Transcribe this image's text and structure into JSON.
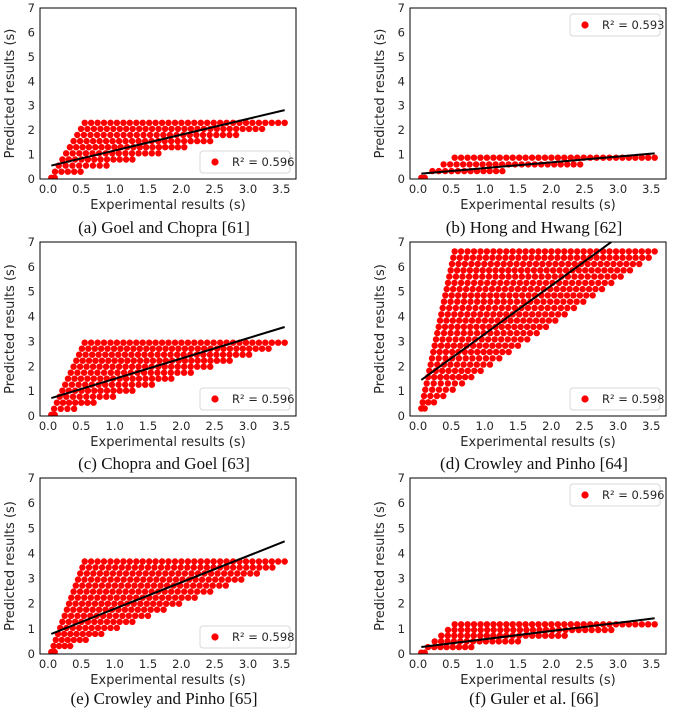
{
  "figure": {
    "marker_color": "#ff0000",
    "line_color": "#000000",
    "x_tick_labels": [
      "0.0",
      "0.5",
      "1.0",
      "1.5",
      "2.0",
      "2.5",
      "3.0",
      "3.5"
    ],
    "y_tick_labels": [
      "0",
      "1",
      "2",
      "3",
      "4",
      "5",
      "6",
      "7"
    ]
  },
  "chart_data": [
    {
      "type": "scatter",
      "caption": "(a) Goel and Chopra [61]",
      "xlabel": "Experimental results (s)",
      "ylabel": "Predicted results (s)",
      "xlim": [
        -0.12,
        3.72
      ],
      "ylim": [
        0,
        7
      ],
      "xticks": [
        0,
        0.5,
        1,
        1.5,
        2,
        2.5,
        3,
        3.5
      ],
      "yticks": [
        0,
        1,
        2,
        3,
        4,
        5,
        6,
        7
      ],
      "x_min": 0.05,
      "x_max": 3.55,
      "knee_x": 0.55,
      "y_min": 0.05,
      "y_max": 2.3,
      "fit_line": {
        "x": [
          0.05,
          3.55
        ],
        "y": [
          0.55,
          2.82
        ]
      },
      "legend": {
        "label": "R² = 0.596",
        "placement": "lower-right"
      }
    },
    {
      "type": "scatter",
      "caption": "(b) Hong and Hwang [62]",
      "xlabel": "Experimental results (s)",
      "ylabel": "Predicted results (s)",
      "xlim": [
        -0.12,
        3.72
      ],
      "ylim": [
        0,
        7
      ],
      "xticks": [
        0,
        0.5,
        1,
        1.5,
        2,
        2.5,
        3,
        3.5
      ],
      "yticks": [
        0,
        1,
        2,
        3,
        4,
        5,
        6,
        7
      ],
      "x_min": 0.05,
      "x_max": 3.55,
      "knee_x": 0.55,
      "y_min": 0.05,
      "y_max": 0.87,
      "fit_line": {
        "x": [
          0.05,
          3.55
        ],
        "y": [
          0.22,
          1.05
        ]
      },
      "legend": {
        "label": "R² = 0.593",
        "placement": "upper-right"
      }
    },
    {
      "type": "scatter",
      "caption": "(c) Chopra and Goel [63]",
      "xlabel": "Experimental results (s)",
      "ylabel": "Predicted results (s)",
      "xlim": [
        -0.12,
        3.72
      ],
      "ylim": [
        0,
        7
      ],
      "xticks": [
        0,
        0.5,
        1,
        1.5,
        2,
        2.5,
        3,
        3.5
      ],
      "yticks": [
        0,
        1,
        2,
        3,
        4,
        5,
        6,
        7
      ],
      "x_min": 0.05,
      "x_max": 3.55,
      "knee_x": 0.55,
      "y_min": 0.05,
      "y_max": 2.95,
      "fit_line": {
        "x": [
          0.05,
          3.55
        ],
        "y": [
          0.72,
          3.58
        ]
      },
      "legend": {
        "label": "R² = 0.596",
        "placement": "lower-right"
      }
    },
    {
      "type": "scatter",
      "caption": "(d) Crowley and Pinho [64]",
      "xlabel": "Experimental results (s)",
      "ylabel": "Predicted results (s)",
      "xlim": [
        -0.12,
        3.72
      ],
      "ylim": [
        0,
        7
      ],
      "xticks": [
        0,
        0.5,
        1,
        1.5,
        2,
        2.5,
        3,
        3.5
      ],
      "yticks": [
        0,
        1,
        2,
        3,
        4,
        5,
        6,
        7
      ],
      "x_min": 0.05,
      "x_max": 3.55,
      "knee_x": 0.55,
      "y_min": 0.3,
      "y_max": 6.62,
      "fit_line": {
        "x": [
          0.05,
          2.9
        ],
        "y": [
          1.45,
          7.0
        ]
      },
      "legend": {
        "label": "R² = 0.598",
        "placement": "lower-right"
      }
    },
    {
      "type": "scatter",
      "caption": "(e) Crowley and Pinho [65]",
      "xlabel": "Experimental results (s)",
      "ylabel": "Predicted results (s)",
      "xlim": [
        -0.12,
        3.72
      ],
      "ylim": [
        0,
        7
      ],
      "xticks": [
        0,
        0.5,
        1,
        1.5,
        2,
        2.5,
        3,
        3.5
      ],
      "yticks": [
        0,
        1,
        2,
        3,
        4,
        5,
        6,
        7
      ],
      "x_min": 0.05,
      "x_max": 3.55,
      "knee_x": 0.55,
      "y_min": 0.08,
      "y_max": 3.68,
      "fit_line": {
        "x": [
          0.05,
          3.55
        ],
        "y": [
          0.8,
          4.48
        ]
      },
      "legend": {
        "label": "R² = 0.598",
        "placement": "lower-right"
      }
    },
    {
      "type": "scatter",
      "caption": "(f) Guler et al. [66]",
      "xlabel": "Experimental results (s)",
      "ylabel": "Predicted results (s)",
      "xlim": [
        -0.12,
        3.72
      ],
      "ylim": [
        0,
        7
      ],
      "xticks": [
        0,
        0.5,
        1,
        1.5,
        2,
        2.5,
        3,
        3.5
      ],
      "yticks": [
        0,
        1,
        2,
        3,
        4,
        5,
        6,
        7
      ],
      "x_min": 0.05,
      "x_max": 3.55,
      "knee_x": 0.55,
      "y_min": 0.05,
      "y_max": 1.18,
      "fit_line": {
        "x": [
          0.05,
          3.55
        ],
        "y": [
          0.28,
          1.42
        ]
      },
      "legend": {
        "label": "R² = 0.596",
        "placement": "upper-right"
      }
    }
  ]
}
